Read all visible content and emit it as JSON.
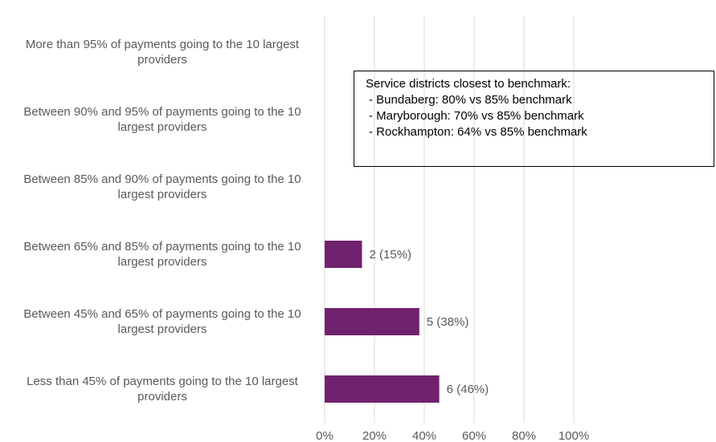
{
  "chart_data": {
    "type": "bar",
    "orientation": "horizontal",
    "categories": [
      "More than 95% of payments going to the 10 largest providers",
      "Between 90% and 95% of payments going to the 10 largest providers",
      "Between 85% and 90% of payments going to the 10 largest providers",
      "Between 65% and 85% of payments going to the 10 largest providers",
      "Between 45% and 65% of payments going to the 10 largest providers",
      "Less than 45% of payments going to the 10 largest providers"
    ],
    "values": [
      0,
      0,
      0,
      15,
      38,
      46
    ],
    "value_labels": [
      null,
      null,
      null,
      "2 (15%)",
      "5 (38%)",
      "6 (46%)"
    ],
    "color": "#70226e",
    "xlim": [
      0,
      100
    ],
    "xticks": [
      {
        "value": 0,
        "label": "0%"
      },
      {
        "value": 20,
        "label": "20%"
      },
      {
        "value": 40,
        "label": "40%"
      },
      {
        "value": 60,
        "label": "60%"
      },
      {
        "value": 80,
        "label": "80%"
      },
      {
        "value": 100,
        "label": "100%"
      }
    ],
    "grid": true,
    "annotation": {
      "title": "Service districts closest to benchmark:",
      "lines": [
        "- Bundaberg: 80% vs 85% benchmark",
        "- Maryborough: 70% vs 85% benchmark",
        "- Rockhampton: 64% vs 85% benchmark"
      ]
    }
  }
}
